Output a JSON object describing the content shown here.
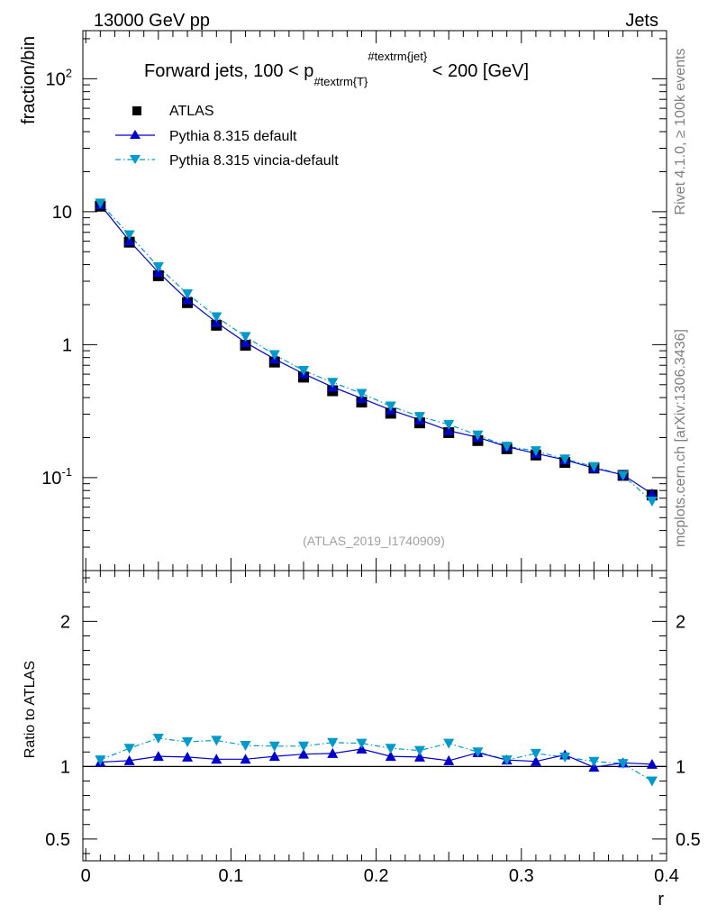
{
  "header": {
    "left": "13000 GeV pp",
    "right": "Jets"
  },
  "side": {
    "rivet": "Rivet 4.1.0, ≥ 100k events",
    "mcplots": "mcplots.cern.ch [arXiv:1306.3436]"
  },
  "chart_data": [
    {
      "type": "scatter",
      "title": "Forward jets, 100 < p",
      "title_sub": "#textrm{T}",
      "title_sup": "#textrm{jet}",
      "title_rest": " < 200 [GeV]",
      "ylabel": "fraction/bin",
      "yscale": "log",
      "ylim": [
        0.02,
        230
      ],
      "xlim": [
        -0.002,
        0.4
      ],
      "ytick_labels": [
        "10^{-1}",
        "1",
        "10",
        "10^{2}"
      ],
      "watermark": "(ATLAS_2019_I1740909)",
      "legend": [
        "ATLAS",
        "Pythia 8.315 default",
        "Pythia 8.315 vincia-default"
      ],
      "x": [
        0.01,
        0.03,
        0.05,
        0.07,
        0.09,
        0.11,
        0.13,
        0.15,
        0.17,
        0.19,
        0.21,
        0.23,
        0.25,
        0.27,
        0.29,
        0.31,
        0.33,
        0.35,
        0.37,
        0.39
      ],
      "series": [
        {
          "name": "ATLAS",
          "color": "#000000",
          "values": [
            11.0,
            5.9,
            3.3,
            2.07,
            1.4,
            0.99,
            0.74,
            0.57,
            0.45,
            0.37,
            0.305,
            0.258,
            0.218,
            0.19,
            0.165,
            0.148,
            0.13,
            0.118,
            0.104,
            0.074
          ]
        },
        {
          "name": "Pythia 8.315 default",
          "color": "#0000cc",
          "values": [
            11.3,
            6.05,
            3.5,
            2.18,
            1.47,
            1.04,
            0.78,
            0.605,
            0.48,
            0.395,
            0.323,
            0.272,
            0.226,
            0.201,
            0.171,
            0.152,
            0.136,
            0.118,
            0.105,
            0.0755
          ]
        },
        {
          "name": "Pythia 8.315 vincia-default",
          "color": "#0099cc",
          "values": [
            11.6,
            6.7,
            3.85,
            2.41,
            1.62,
            1.15,
            0.84,
            0.64,
            0.52,
            0.43,
            0.345,
            0.288,
            0.251,
            0.209,
            0.172,
            0.159,
            0.138,
            0.121,
            0.104,
            0.0665
          ]
        }
      ]
    },
    {
      "type": "line",
      "ylabel": "Ratio to ATLAS",
      "xlabel": "r",
      "ylim": [
        0.35,
        2.35
      ],
      "xlim": [
        -0.002,
        0.4
      ],
      "xtick_labels": [
        "0",
        "0.1",
        "0.2",
        "0.3",
        "0.4"
      ],
      "ytick_labels": [
        "0.5",
        "1",
        "2"
      ],
      "x": [
        0.01,
        0.03,
        0.05,
        0.07,
        0.09,
        0.11,
        0.13,
        0.15,
        0.17,
        0.19,
        0.21,
        0.23,
        0.25,
        0.27,
        0.29,
        0.31,
        0.33,
        0.35,
        0.37,
        0.39
      ],
      "series": [
        {
          "name": "Pythia 8.315 default",
          "color": "#0000cc",
          "values": [
            1.03,
            1.04,
            1.07,
            1.065,
            1.05,
            1.05,
            1.07,
            1.085,
            1.09,
            1.12,
            1.07,
            1.065,
            1.04,
            1.095,
            1.045,
            1.035,
            1.08,
            0.995,
            1.025,
            1.015
          ]
        },
        {
          "name": "Pythia 8.315 vincia-default",
          "color": "#0099cc",
          "values": [
            1.045,
            1.125,
            1.195,
            1.17,
            1.18,
            1.145,
            1.14,
            1.14,
            1.165,
            1.16,
            1.125,
            1.11,
            1.16,
            1.1,
            1.045,
            1.09,
            1.065,
            1.035,
            1.02,
            0.9
          ]
        }
      ]
    }
  ]
}
